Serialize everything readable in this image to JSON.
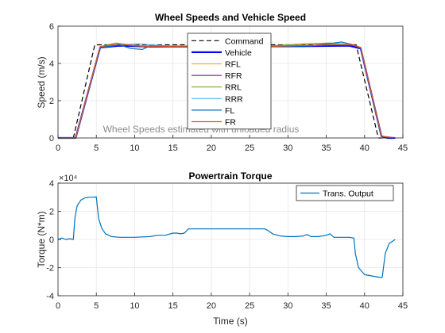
{
  "chart_data": [
    {
      "type": "line",
      "title": "Wheel Speeds and Vehicle Speed",
      "xlabel": "",
      "ylabel": "Speed (m/s)",
      "xlim": [
        0,
        45
      ],
      "ylim": [
        0,
        6
      ],
      "xticks": [
        0,
        5,
        10,
        15,
        20,
        25,
        30,
        35,
        40,
        45
      ],
      "yticks": [
        0,
        2,
        4,
        6
      ],
      "grid": true,
      "legend_position": "top-center",
      "annotation": "Wheel Speeds estimated with unloaded radius",
      "series": [
        {
          "name": "Command",
          "color": "#000000",
          "style": "dashed",
          "x": [
            0,
            2,
            4.8,
            38.9,
            41.8,
            44
          ],
          "y": [
            0,
            0,
            5,
            5,
            0,
            0
          ]
        },
        {
          "name": "Vehicle",
          "color": "#0000ff",
          "style": "solid-thick",
          "x": [
            0,
            2.3,
            5.5,
            8,
            12,
            20,
            30,
            38,
            39.5,
            42.2,
            43,
            44
          ],
          "y": [
            0,
            0,
            4.85,
            4.95,
            4.9,
            4.9,
            4.92,
            4.95,
            4.8,
            0.1,
            0,
            0
          ]
        },
        {
          "name": "RFL",
          "color": "#edb120",
          "style": "solid",
          "x": [
            0,
            2.3,
            5.5,
            8,
            11,
            16,
            22,
            28,
            33,
            36,
            38.5,
            39.5,
            42.2,
            44
          ],
          "y": [
            0,
            0,
            4.9,
            5.05,
            4.95,
            4.95,
            4.95,
            4.95,
            5.05,
            5.05,
            5,
            4.85,
            0.1,
            0
          ]
        },
        {
          "name": "RFR",
          "color": "#7e2f8e",
          "style": "solid",
          "x": [
            0,
            2.3,
            5.5,
            8,
            11,
            16,
            22,
            28,
            33,
            36,
            38.5,
            39.5,
            42.2,
            44
          ],
          "y": [
            0,
            0,
            4.85,
            5,
            4.92,
            4.9,
            4.92,
            4.92,
            4.95,
            5,
            4.98,
            4.82,
            0.1,
            0
          ]
        },
        {
          "name": "RRL",
          "color": "#77ac30",
          "style": "solid",
          "x": [
            0,
            2.3,
            5.5,
            7.5,
            10,
            15,
            22,
            28,
            32,
            35.5,
            38.5,
            39.5,
            42.2,
            44
          ],
          "y": [
            0,
            0,
            4.9,
            5.1,
            4.95,
            4.9,
            4.95,
            4.95,
            5.05,
            5.1,
            5,
            4.85,
            0.1,
            0
          ]
        },
        {
          "name": "RRR",
          "color": "#4dbeee",
          "style": "solid",
          "x": [
            0,
            2.3,
            5.5,
            8,
            10.5,
            15,
            22,
            28,
            33,
            36,
            38.5,
            39.5,
            42.2,
            44
          ],
          "y": [
            0,
            0,
            4.85,
            5,
            5.05,
            4.92,
            4.92,
            4.92,
            4.95,
            5.05,
            5,
            4.82,
            0.1,
            0
          ]
        },
        {
          "name": "FL",
          "color": "#0072bd",
          "style": "solid",
          "x": [
            0,
            2.3,
            5.5,
            8,
            9.5,
            11,
            12,
            16,
            22,
            28,
            33,
            36,
            37,
            38.5,
            39.5,
            42.2,
            44
          ],
          "y": [
            0,
            0,
            4.85,
            5,
            4.8,
            4.75,
            4.95,
            4.88,
            4.9,
            4.9,
            4.95,
            5.1,
            5.15,
            5,
            4.82,
            0.1,
            0
          ]
        },
        {
          "name": "FR",
          "color": "#d95319",
          "style": "solid",
          "x": [
            0,
            2.3,
            5.5,
            8,
            11,
            16,
            22,
            28,
            33,
            36,
            38.5,
            39.5,
            42.2,
            44
          ],
          "y": [
            0,
            0,
            4.9,
            5.05,
            4.92,
            4.92,
            4.92,
            4.92,
            4.98,
            5,
            5,
            4.85,
            0.1,
            0
          ]
        }
      ]
    },
    {
      "type": "line",
      "title": "Powertrain Torque",
      "xlabel": "Time (s)",
      "ylabel": "Torque (N*m)",
      "exponent_label": "×10⁴",
      "xlim": [
        0,
        45
      ],
      "ylim": [
        -4,
        4
      ],
      "xticks": [
        0,
        5,
        10,
        15,
        20,
        25,
        30,
        35,
        40,
        45
      ],
      "yticks": [
        -4,
        -2,
        0,
        2,
        4
      ],
      "grid": true,
      "legend_position": "top-right",
      "series": [
        {
          "name": "Trans. Output",
          "color": "#0072bd",
          "style": "solid",
          "x": [
            0,
            0.5,
            1,
            1.5,
            2,
            2.2,
            2.5,
            3,
            3.5,
            4,
            4.5,
            5,
            5.3,
            5.7,
            6.2,
            7,
            8,
            10,
            12,
            13,
            14,
            15,
            15.5,
            16,
            16.5,
            17,
            18,
            20,
            22,
            25,
            27,
            27.5,
            28,
            29,
            30,
            31,
            32,
            32.5,
            33,
            34,
            35,
            35.5,
            36,
            37,
            38,
            38.6,
            38.8,
            39.2,
            40,
            41,
            42,
            42.3,
            42.7,
            43.2,
            44
          ],
          "y": [
            0,
            0.1,
            0,
            0.05,
            0,
            1.5,
            2.4,
            2.8,
            2.95,
            3.0,
            3.0,
            3.02,
            1.5,
            0.8,
            0.4,
            0.2,
            0.15,
            0.15,
            0.2,
            0.3,
            0.3,
            0.45,
            0.45,
            0.4,
            0.45,
            0.75,
            0.75,
            0.75,
            0.75,
            0.75,
            0.75,
            0.6,
            0.4,
            0.25,
            0.2,
            0.2,
            0.25,
            0.35,
            0.2,
            0.2,
            0.3,
            0.4,
            0.15,
            0.15,
            0.15,
            0.1,
            -1.0,
            -2.0,
            -2.5,
            -2.6,
            -2.7,
            -2.7,
            -1.0,
            -0.3,
            0
          ]
        }
      ]
    }
  ]
}
